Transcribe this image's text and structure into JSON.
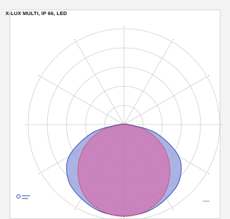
{
  "page": {
    "title": "X-LUX MULTI, IP 66, LED"
  },
  "chart_data": {
    "type": "polar",
    "title": "X-LUX MULTI, IP 66, LED",
    "angle_grid_step_deg": 30,
    "rings": 5,
    "grid": true,
    "series": [
      {
        "color": "#8f99dc",
        "stroke": "#3a4fb5",
        "angles_deg": [
          0,
          15,
          30,
          45,
          60,
          75,
          90,
          105,
          120,
          135,
          150,
          165,
          180,
          195,
          210,
          225,
          240,
          255,
          270,
          285,
          300,
          315,
          330,
          345
        ],
        "values": [
          0.95,
          0.94,
          0.89,
          0.82,
          0.66,
          0.35,
          0.05,
          0.0,
          0.0,
          0.0,
          0.0,
          0.0,
          0.0,
          0.0,
          0.0,
          0.0,
          0.0,
          0.0,
          0.05,
          0.35,
          0.66,
          0.82,
          0.89,
          0.94
        ]
      },
      {
        "color": "#d86aa8",
        "stroke": "#c23a4a",
        "angles_deg": [
          0,
          15,
          30,
          45,
          60,
          75,
          90,
          105,
          120,
          135,
          150,
          165,
          180,
          195,
          210,
          225,
          240,
          255,
          270,
          285,
          300,
          315,
          330,
          345
        ],
        "values": [
          0.96,
          0.93,
          0.84,
          0.68,
          0.48,
          0.25,
          0.03,
          0.0,
          0.0,
          0.0,
          0.0,
          0.0,
          0.0,
          0.0,
          0.0,
          0.0,
          0.0,
          0.0,
          0.03,
          0.25,
          0.48,
          0.68,
          0.84,
          0.93
        ]
      }
    ]
  }
}
